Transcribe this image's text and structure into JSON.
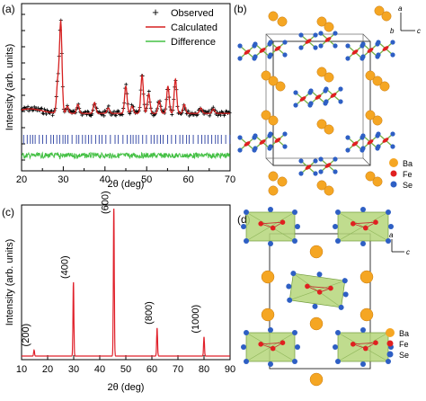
{
  "panels": {
    "a": {
      "label": "(a)",
      "ylabel": "Intensity (arb. units)",
      "xlabel": "2θ (deg)",
      "xticks": [
        "20",
        "30",
        "40",
        "50",
        "60",
        "70"
      ],
      "legend": [
        {
          "name": "Observed",
          "color": "#000000",
          "marker": "+"
        },
        {
          "name": "Calculated",
          "color": "#d62020",
          "marker": "line"
        },
        {
          "name": "Difference",
          "color": "#44c044",
          "marker": "line"
        }
      ]
    },
    "b": {
      "label": "(b)",
      "axes": {
        "a": "a",
        "b": "b",
        "c": "c"
      },
      "legend": [
        {
          "name": "Ba",
          "color": "#f5a623"
        },
        {
          "name": "Fe",
          "color": "#e02020"
        },
        {
          "name": "Se",
          "color": "#2e5fc4"
        }
      ]
    },
    "c": {
      "label": "(c)",
      "ylabel": "Intensity (arb. units)",
      "xlabel": "2θ (deg)",
      "xticks": [
        "10",
        "20",
        "30",
        "40",
        "50",
        "60",
        "70",
        "80",
        "90"
      ],
      "peak_labels": [
        "(200)",
        "(400)",
        "(600)",
        "(800)",
        "(1000)"
      ],
      "color": "#e0202a"
    },
    "d": {
      "label": "(d)",
      "axes": {
        "a": "a",
        "c": "c"
      },
      "legend": [
        {
          "name": "Ba",
          "color": "#f5a623"
        },
        {
          "name": "Fe",
          "color": "#e02020"
        },
        {
          "name": "Se",
          "color": "#2e5fc4"
        }
      ]
    }
  },
  "chart_data": [
    {
      "type": "line",
      "title": "",
      "xlabel": "2θ (deg)",
      "ylabel": "Intensity (arb. units)",
      "xlim": [
        20,
        70
      ],
      "grid": false,
      "legend_position": "top-right",
      "peaks": [
        {
          "x": 28.7,
          "y": 0.35
        },
        {
          "x": 29.4,
          "y": 1.0
        },
        {
          "x": 31.0,
          "y": 0.08
        },
        {
          "x": 33.5,
          "y": 0.1
        },
        {
          "x": 37.5,
          "y": 0.12
        },
        {
          "x": 40.8,
          "y": 0.06
        },
        {
          "x": 45.0,
          "y": 0.3
        },
        {
          "x": 46.5,
          "y": 0.08
        },
        {
          "x": 48.9,
          "y": 0.42
        },
        {
          "x": 50.5,
          "y": 0.22
        },
        {
          "x": 53.0,
          "y": 0.14
        },
        {
          "x": 55.1,
          "y": 0.3
        },
        {
          "x": 56.9,
          "y": 0.38
        },
        {
          "x": 59.0,
          "y": 0.1
        },
        {
          "x": 63.0,
          "y": 0.06
        },
        {
          "x": 66.0,
          "y": 0.05
        }
      ],
      "background": 0.26,
      "series": [
        {
          "name": "Observed"
        },
        {
          "name": "Calculated"
        },
        {
          "name": "Difference"
        }
      ]
    },
    {
      "type": "line",
      "title": "",
      "xlabel": "2θ (deg)",
      "ylabel": "Intensity (arb. units)",
      "xlim": [
        10,
        90
      ],
      "grid": false,
      "peaks": [
        {
          "x": 14.8,
          "y": 0.04,
          "label": "(200)"
        },
        {
          "x": 29.9,
          "y": 0.5,
          "label": "(400)"
        },
        {
          "x": 45.4,
          "y": 1.0,
          "label": "(600)"
        },
        {
          "x": 62.0,
          "y": 0.19,
          "label": "(800)"
        },
        {
          "x": 80.0,
          "y": 0.13,
          "label": "(1000)"
        }
      ]
    }
  ]
}
